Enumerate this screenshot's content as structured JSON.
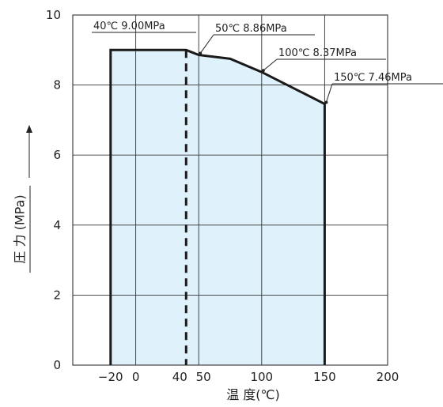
{
  "chart_data": {
    "type": "area",
    "xlabel": "温 度(℃)",
    "ylabel": "圧 力 (MPa)",
    "xlim": [
      -50,
      200
    ],
    "ylim": [
      0,
      10
    ],
    "x_ticks": [
      {
        "value": -20,
        "label": "−20"
      },
      {
        "value": 0,
        "label": "0"
      },
      {
        "value": 40,
        "label": "40"
      },
      {
        "value": 50,
        "label": "50"
      },
      {
        "value": 100,
        "label": "100"
      },
      {
        "value": 150,
        "label": "150"
      },
      {
        "value": 200,
        "label": "200"
      }
    ],
    "y_ticks": [
      {
        "value": 0,
        "label": "0"
      },
      {
        "value": 2,
        "label": "2"
      },
      {
        "value": 4,
        "label": "4"
      },
      {
        "value": 6,
        "label": "6"
      },
      {
        "value": 8,
        "label": "8"
      },
      {
        "value": 10,
        "label": "10"
      }
    ],
    "x_gridlines": [
      0,
      50,
      100,
      150
    ],
    "y_gridlines": [
      2,
      4,
      6,
      8
    ],
    "grid": true,
    "fill_color": "#dff1fa",
    "line_color": "#1a1a1a",
    "series": [
      {
        "x": [
          -20,
          -20,
          40,
          50,
          75,
          100,
          150,
          150
        ],
        "y": [
          0,
          9.0,
          9.0,
          8.86,
          8.75,
          8.37,
          7.46,
          0
        ]
      }
    ],
    "reference_line": {
      "x": 40,
      "style": "dashed"
    },
    "annotations": [
      {
        "text": "40℃ 9.00MPa",
        "x": 40,
        "y": 9.0
      },
      {
        "text": "50℃ 8.86MPa",
        "x": 50,
        "y": 8.86
      },
      {
        "text": "100℃ 8.37MPa",
        "x": 100,
        "y": 8.37
      },
      {
        "text": "150℃ 7.46MPa",
        "x": 150,
        "y": 7.46
      }
    ]
  }
}
